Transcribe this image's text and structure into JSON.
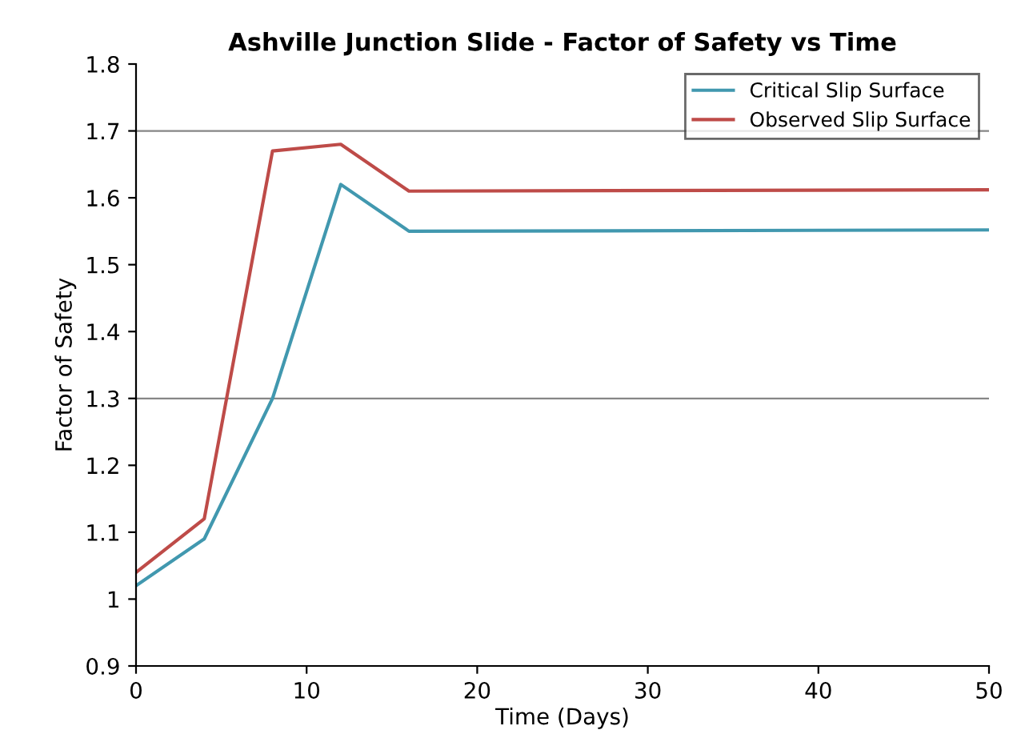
{
  "chart_data": {
    "type": "line",
    "title": "Ashville Junction Slide - Factor of Safety vs Time",
    "xlabel": "Time (Days)",
    "ylabel": "Factor of Safety",
    "series": [
      {
        "name": "Critical Slip Surface",
        "color": "#4198af",
        "x": [
          0,
          4,
          8,
          12,
          16,
          50
        ],
        "values": [
          1.02,
          1.09,
          1.3,
          1.62,
          1.55,
          1.552
        ]
      },
      {
        "name": "Observed Slip Surface",
        "color": "#be4b48",
        "x": [
          0,
          4,
          8,
          12,
          16,
          50
        ],
        "values": [
          1.04,
          1.12,
          1.67,
          1.68,
          1.61,
          1.612
        ]
      }
    ],
    "xlim": [
      0,
      50
    ],
    "xticks": [
      0,
      10,
      20,
      30,
      40,
      50
    ],
    "ylim": [
      0.9,
      1.8
    ],
    "yticks": [
      0.9,
      1,
      1.1,
      1.2,
      1.3,
      1.4,
      1.5,
      1.6,
      1.7,
      1.8
    ],
    "ref_lines": [
      {
        "axis": "y",
        "value": 1.3,
        "color": "#868686"
      },
      {
        "axis": "y",
        "value": 1.7,
        "color": "#868686"
      }
    ],
    "legend": "top right",
    "marker": "none",
    "line_style": "solid"
  }
}
